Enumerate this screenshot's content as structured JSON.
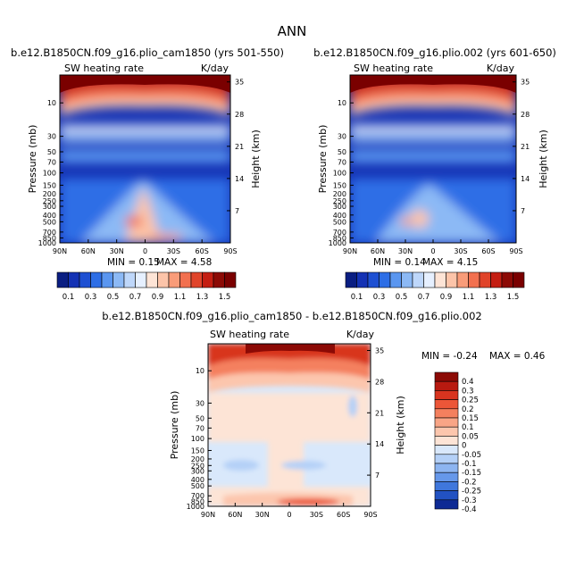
{
  "figure_title": "ANN",
  "chart_data": [
    {
      "type": "heatmap",
      "title": "b.e12.B1850CN.f09_g16.plio_cam1850 (yrs 501-550)",
      "variable": "SW heating rate",
      "units": "K/day",
      "xlabel": "",
      "ylabel": "Pressure (mb)",
      "ylabel_right": "Height (km)",
      "x_ticks": [
        "90N",
        "60N",
        "30N",
        "0",
        "30S",
        "60S",
        "90S"
      ],
      "y_ticks": [
        "10",
        "30",
        "50",
        "70",
        "100",
        "150",
        "200",
        "250",
        "300",
        "400",
        "500",
        "700",
        "850",
        "1000"
      ],
      "height_ticks": [
        "35",
        "28",
        "21",
        "14",
        "7"
      ],
      "min_label": "MIN =   0.15",
      "max_label": "MAX =   4.58",
      "colorbar_labels": [
        "0.1",
        "0.3",
        "0.5",
        "0.7",
        "0.9",
        "1.1",
        "1.3",
        "1.5"
      ],
      "colorbar_levels": [
        0.1,
        0.2,
        0.3,
        0.4,
        0.5,
        0.6,
        0.7,
        0.8,
        0.9,
        1.0,
        1.1,
        1.2,
        1.3,
        1.4,
        1.5
      ]
    },
    {
      "type": "heatmap",
      "title": "b.e12.B1850CN.f09_g16.plio.002 (yrs 601-650)",
      "variable": "SW heating rate",
      "units": "K/day",
      "xlabel": "",
      "ylabel": "Pressure (mb)",
      "ylabel_right": "Height (km)",
      "x_ticks": [
        "90N",
        "60N",
        "30N",
        "0",
        "30S",
        "60S",
        "90S"
      ],
      "y_ticks": [
        "10",
        "30",
        "50",
        "70",
        "100",
        "150",
        "200",
        "250",
        "300",
        "400",
        "500",
        "700",
        "850",
        "1000"
      ],
      "height_ticks": [
        "35",
        "28",
        "21",
        "14",
        "7"
      ],
      "min_label": "MIN =   0.14",
      "max_label": "MAX =   4.15",
      "colorbar_labels": [
        "0.1",
        "0.3",
        "0.5",
        "0.7",
        "0.9",
        "1.1",
        "1.3",
        "1.5"
      ],
      "colorbar_levels": [
        0.1,
        0.2,
        0.3,
        0.4,
        0.5,
        0.6,
        0.7,
        0.8,
        0.9,
        1.0,
        1.1,
        1.2,
        1.3,
        1.4,
        1.5
      ]
    },
    {
      "type": "heatmap",
      "title": "b.e12.B1850CN.f09_g16.plio_cam1850 - b.e12.B1850CN.f09_g16.plio.002",
      "variable": "SW heating rate",
      "units": "K/day",
      "xlabel": "",
      "ylabel": "Pressure (mb)",
      "ylabel_right": "Height (km)",
      "x_ticks": [
        "90N",
        "60N",
        "30N",
        "0",
        "30S",
        "60S",
        "90S"
      ],
      "y_ticks": [
        "10",
        "30",
        "50",
        "70",
        "100",
        "150",
        "200",
        "250",
        "300",
        "400",
        "500",
        "700",
        "850",
        "1000"
      ],
      "height_ticks": [
        "35",
        "28",
        "21",
        "14",
        "7"
      ],
      "min_label": "MIN =  -0.24",
      "max_label": "MAX =   0.46",
      "colorbar_labels": [
        "0.4",
        "0.3",
        "0.25",
        "0.2",
        "0.15",
        "0.1",
        "0.05",
        "0",
        "-0.05",
        "-0.1",
        "-0.15",
        "-0.2",
        "-0.25",
        "-0.3",
        "-0.4"
      ]
    }
  ],
  "colors": {
    "abs_scale": [
      "#0a1e82",
      "#1432b4",
      "#1e50d2",
      "#2d6ee6",
      "#5a96f0",
      "#8cb9f5",
      "#bed7fa",
      "#e6f0ff",
      "#fde4d6",
      "#fcc4a9",
      "#f99c79",
      "#f2704f",
      "#e0442a",
      "#c41e12",
      "#8c0a05",
      "#7a0000"
    ],
    "diff_scale": [
      "#8c0a05",
      "#b81a10",
      "#d8341f",
      "#ec5638",
      "#f4805e",
      "#f9a586",
      "#fcc6ad",
      "#fde4d6",
      "#d9e8fb",
      "#b4d0f7",
      "#8db5f1",
      "#6698ea",
      "#3f77dc",
      "#2252c2",
      "#0e2a94"
    ]
  }
}
